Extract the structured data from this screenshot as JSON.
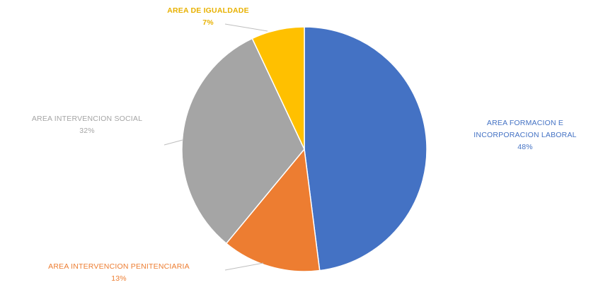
{
  "chart_data": {
    "type": "pie",
    "title": "",
    "slices": [
      {
        "label": "AREA FORMACION E INCORPORACION LABORAL",
        "label_lines": [
          "AREA FORMACION E",
          "INCORPORACION LABORAL"
        ],
        "value": 48,
        "value_label": "48%",
        "color": "#4472C4"
      },
      {
        "label": "AREA INTERVENCION PENITENCIARIA",
        "label_lines": [
          "AREA INTERVENCION PENITENCIARIA"
        ],
        "value": 13,
        "value_label": "13%",
        "color": "#ED7D31"
      },
      {
        "label": "AREA INTERVENCION SOCIAL",
        "label_lines": [
          "AREA INTERVENCION SOCIAL"
        ],
        "value": 32,
        "value_label": "32%",
        "color": "#A5A5A5"
      },
      {
        "label": "AREA DE IGUALDADE",
        "label_lines": [
          "AREA DE IGUALDADE"
        ],
        "value": 7,
        "value_label": "7%",
        "color": "#FFC000"
      }
    ],
    "label_colors": [
      "#4472C4",
      "#ED7D31",
      "#A5A5A5",
      "#E8B100"
    ],
    "legend": "none"
  }
}
